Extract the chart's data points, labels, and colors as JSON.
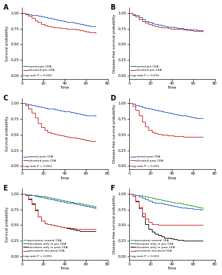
{
  "panels": [
    {
      "label": "A",
      "ylabel": "Survival probability",
      "xlabel": "Time",
      "logrank": "Log rank P = 0.042",
      "xlim": [
        0,
        80
      ],
      "ylim": [
        -0.05,
        1.08
      ],
      "yticks": [
        0.0,
        0.25,
        0.5,
        0.75,
        1.0
      ],
      "curves": [
        {
          "color": "#3366cc",
          "legend": "normal pre-CEA",
          "x": [
            0,
            3,
            6,
            9,
            12,
            15,
            18,
            21,
            24,
            27,
            30,
            33,
            36,
            39,
            42,
            45,
            48,
            51,
            54,
            57,
            60,
            63,
            66,
            69
          ],
          "y": [
            1.0,
            0.99,
            0.98,
            0.97,
            0.96,
            0.95,
            0.94,
            0.93,
            0.92,
            0.91,
            0.9,
            0.89,
            0.88,
            0.87,
            0.86,
            0.85,
            0.84,
            0.83,
            0.82,
            0.81,
            0.8,
            0.79,
            0.79,
            0.79
          ]
        },
        {
          "color": "#cc3333",
          "legend": "elevated pre-CEA",
          "x": [
            0,
            3,
            6,
            9,
            12,
            15,
            18,
            21,
            24,
            27,
            30,
            33,
            36,
            39,
            42,
            45,
            48,
            51,
            54,
            57,
            60,
            63,
            66,
            69
          ],
          "y": [
            1.0,
            0.98,
            0.95,
            0.92,
            0.88,
            0.85,
            0.82,
            0.8,
            0.79,
            0.78,
            0.77,
            0.77,
            0.76,
            0.76,
            0.75,
            0.75,
            0.74,
            0.73,
            0.72,
            0.71,
            0.7,
            0.69,
            0.69,
            0.68
          ]
        }
      ]
    },
    {
      "label": "B",
      "ylabel": "Disease-free survival probability",
      "xlabel": "Time",
      "logrank": "Log rank P = 0.610",
      "xlim": [
        0,
        80
      ],
      "ylim": [
        -0.05,
        1.08
      ],
      "yticks": [
        0.0,
        0.25,
        0.5,
        0.75,
        1.0
      ],
      "curves": [
        {
          "color": "#3366cc",
          "legend": "normal pre-CEA",
          "x": [
            0,
            3,
            6,
            9,
            12,
            15,
            18,
            21,
            24,
            27,
            30,
            33,
            36,
            39,
            42,
            45,
            48,
            51,
            54,
            57,
            60,
            63,
            66,
            69
          ],
          "y": [
            1.0,
            0.98,
            0.96,
            0.93,
            0.9,
            0.87,
            0.85,
            0.83,
            0.82,
            0.81,
            0.8,
            0.79,
            0.78,
            0.78,
            0.77,
            0.76,
            0.76,
            0.75,
            0.74,
            0.73,
            0.73,
            0.72,
            0.72,
            0.72
          ]
        },
        {
          "color": "#cc3333",
          "legend": "elevated pre-CEA",
          "x": [
            0,
            3,
            6,
            9,
            12,
            15,
            18,
            21,
            24,
            27,
            30,
            33,
            36,
            39,
            42,
            45,
            48,
            51,
            54,
            57,
            60,
            63,
            66,
            69
          ],
          "y": [
            1.0,
            0.97,
            0.94,
            0.9,
            0.87,
            0.84,
            0.82,
            0.8,
            0.79,
            0.78,
            0.77,
            0.77,
            0.76,
            0.75,
            0.75,
            0.74,
            0.74,
            0.73,
            0.72,
            0.72,
            0.71,
            0.71,
            0.71,
            0.7
          ]
        }
      ]
    },
    {
      "label": "C",
      "ylabel": "Survival probability",
      "xlabel": "Time",
      "logrank": "Log rank P < 0.001",
      "xlim": [
        0,
        80
      ],
      "ylim": [
        -0.05,
        1.08
      ],
      "yticks": [
        0.0,
        0.25,
        0.5,
        0.75,
        1.0
      ],
      "curves": [
        {
          "color": "#3366cc",
          "legend": "normal post-CEA",
          "x": [
            0,
            3,
            6,
            9,
            12,
            15,
            18,
            21,
            24,
            27,
            30,
            33,
            36,
            39,
            42,
            45,
            48,
            51,
            54,
            57,
            60,
            63,
            66,
            69
          ],
          "y": [
            1.0,
            0.99,
            0.98,
            0.97,
            0.96,
            0.95,
            0.94,
            0.93,
            0.92,
            0.91,
            0.9,
            0.89,
            0.88,
            0.87,
            0.87,
            0.86,
            0.85,
            0.84,
            0.83,
            0.82,
            0.81,
            0.8,
            0.8,
            0.79
          ]
        },
        {
          "color": "#cc3333",
          "legend": "elevated post-CEA",
          "x": [
            0,
            3,
            6,
            9,
            12,
            15,
            18,
            21,
            24,
            27,
            30,
            33,
            36,
            39,
            42,
            45,
            48,
            51,
            54,
            57,
            60,
            63,
            66,
            69
          ],
          "y": [
            1.0,
            0.97,
            0.92,
            0.85,
            0.77,
            0.69,
            0.62,
            0.57,
            0.54,
            0.52,
            0.51,
            0.5,
            0.49,
            0.48,
            0.47,
            0.46,
            0.45,
            0.44,
            0.43,
            0.42,
            0.41,
            0.4,
            0.4,
            0.4
          ]
        }
      ]
    },
    {
      "label": "D",
      "ylabel": "Disease-free survival probability",
      "xlabel": "Time",
      "logrank": "Log rank P < 0.001",
      "xlim": [
        0,
        80
      ],
      "ylim": [
        -0.05,
        1.08
      ],
      "yticks": [
        0.0,
        0.25,
        0.5,
        0.75,
        1.0
      ],
      "curves": [
        {
          "color": "#3366cc",
          "legend": "normal post-CEA",
          "x": [
            0,
            3,
            6,
            9,
            12,
            15,
            18,
            21,
            24,
            27,
            30,
            33,
            36,
            39,
            42,
            45,
            48,
            51,
            54,
            57,
            60,
            63,
            66,
            69
          ],
          "y": [
            1.0,
            0.99,
            0.97,
            0.96,
            0.94,
            0.93,
            0.91,
            0.9,
            0.89,
            0.88,
            0.87,
            0.86,
            0.85,
            0.84,
            0.83,
            0.82,
            0.81,
            0.8,
            0.79,
            0.78,
            0.77,
            0.76,
            0.76,
            0.76
          ]
        },
        {
          "color": "#cc3333",
          "legend": "elevated post-CEA",
          "x": [
            0,
            3,
            6,
            9,
            12,
            15,
            18,
            21,
            24,
            27,
            30,
            33,
            36,
            39,
            42,
            45,
            48,
            51,
            54,
            57,
            60,
            63,
            66,
            69
          ],
          "y": [
            1.0,
            0.96,
            0.89,
            0.8,
            0.71,
            0.63,
            0.58,
            0.54,
            0.52,
            0.51,
            0.5,
            0.5,
            0.49,
            0.49,
            0.48,
            0.48,
            0.48,
            0.47,
            0.47,
            0.47,
            0.47,
            0.47,
            0.47,
            0.47
          ]
        }
      ]
    },
    {
      "label": "E",
      "ylabel": "Survival probability",
      "xlabel": "Time",
      "logrank": "Log rank P < 0.001",
      "xlim": [
        0,
        80
      ],
      "ylim": [
        -0.05,
        1.08
      ],
      "yticks": [
        0.0,
        0.25,
        0.5,
        0.75,
        1.0
      ],
      "curves": [
        {
          "color": "#33aa33",
          "legend": "persistent normal CEA",
          "x": [
            0,
            3,
            6,
            9,
            12,
            15,
            18,
            21,
            24,
            27,
            30,
            33,
            36,
            39,
            42,
            45,
            48,
            51,
            54,
            57,
            60,
            63,
            66,
            69
          ],
          "y": [
            1.0,
            0.99,
            0.99,
            0.98,
            0.97,
            0.96,
            0.96,
            0.95,
            0.94,
            0.93,
            0.92,
            0.91,
            0.9,
            0.89,
            0.88,
            0.87,
            0.86,
            0.85,
            0.84,
            0.83,
            0.82,
            0.81,
            0.8,
            0.79
          ]
        },
        {
          "color": "#3366cc",
          "legend": "elevation only in pre-CEA",
          "x": [
            0,
            3,
            6,
            9,
            12,
            15,
            18,
            21,
            24,
            27,
            30,
            33,
            36,
            39,
            42,
            45,
            48,
            51,
            54,
            57,
            60,
            63,
            66,
            69
          ],
          "y": [
            1.0,
            0.99,
            0.98,
            0.97,
            0.96,
            0.95,
            0.94,
            0.93,
            0.92,
            0.91,
            0.9,
            0.89,
            0.88,
            0.87,
            0.86,
            0.85,
            0.84,
            0.83,
            0.82,
            0.81,
            0.8,
            0.79,
            0.78,
            0.77
          ]
        },
        {
          "color": "#111111",
          "legend": "elevation only in post-CEA",
          "x": [
            0,
            3,
            6,
            9,
            12,
            15,
            18,
            21,
            24,
            27,
            30,
            33,
            36,
            39,
            42,
            45,
            48,
            51,
            54,
            57,
            60,
            63,
            66,
            69
          ],
          "y": [
            1.0,
            0.97,
            0.92,
            0.84,
            0.74,
            0.64,
            0.57,
            0.53,
            0.51,
            0.5,
            0.49,
            0.48,
            0.47,
            0.46,
            0.45,
            0.44,
            0.43,
            0.42,
            0.41,
            0.41,
            0.4,
            0.4,
            0.4,
            0.4
          ]
        },
        {
          "color": "#cc3333",
          "legend": "persistent elevated CEA",
          "x": [
            0,
            3,
            6,
            9,
            12,
            15,
            18,
            21,
            24,
            27,
            30,
            33,
            36,
            39,
            42,
            45,
            48,
            51,
            54,
            57,
            60,
            63,
            66,
            69
          ],
          "y": [
            1.0,
            0.97,
            0.91,
            0.83,
            0.73,
            0.64,
            0.57,
            0.53,
            0.51,
            0.5,
            0.49,
            0.48,
            0.47,
            0.46,
            0.46,
            0.45,
            0.45,
            0.44,
            0.44,
            0.44,
            0.44,
            0.44,
            0.44,
            0.44
          ]
        }
      ]
    },
    {
      "label": "F",
      "ylabel": "Disease-free survival probability",
      "xlabel": "Time",
      "logrank": "Log rank P < 0.001",
      "xlim": [
        0,
        80
      ],
      "ylim": [
        -0.05,
        1.08
      ],
      "yticks": [
        0.0,
        0.25,
        0.5,
        0.75,
        1.0
      ],
      "curves": [
        {
          "color": "#33aa33",
          "legend": "persistent normal CEA",
          "x": [
            0,
            3,
            6,
            9,
            12,
            15,
            18,
            21,
            24,
            27,
            30,
            33,
            36,
            39,
            42,
            45,
            48,
            51,
            54,
            57,
            60,
            63,
            66,
            69
          ],
          "y": [
            1.0,
            0.99,
            0.98,
            0.97,
            0.96,
            0.95,
            0.94,
            0.93,
            0.92,
            0.91,
            0.9,
            0.89,
            0.88,
            0.87,
            0.86,
            0.85,
            0.84,
            0.83,
            0.82,
            0.81,
            0.8,
            0.79,
            0.78,
            0.77
          ]
        },
        {
          "color": "#3366cc",
          "legend": "elevation only in pre-CEA",
          "x": [
            0,
            3,
            6,
            9,
            12,
            15,
            18,
            21,
            24,
            27,
            30,
            33,
            36,
            39,
            42,
            45,
            48,
            51,
            54,
            57,
            60,
            63,
            66,
            69
          ],
          "y": [
            1.0,
            0.99,
            0.97,
            0.95,
            0.93,
            0.91,
            0.89,
            0.87,
            0.86,
            0.85,
            0.84,
            0.83,
            0.82,
            0.81,
            0.8,
            0.79,
            0.78,
            0.78,
            0.77,
            0.77,
            0.76,
            0.76,
            0.75,
            0.75
          ]
        },
        {
          "color": "#111111",
          "legend": "elevation only in post-CEA",
          "x": [
            0,
            3,
            6,
            9,
            12,
            15,
            18,
            21,
            24,
            27,
            30,
            33,
            36,
            39,
            42,
            45,
            48,
            51,
            54,
            57,
            60,
            63,
            66,
            69
          ],
          "y": [
            1.0,
            0.96,
            0.88,
            0.77,
            0.64,
            0.52,
            0.44,
            0.39,
            0.36,
            0.34,
            0.32,
            0.3,
            0.29,
            0.28,
            0.27,
            0.26,
            0.26,
            0.25,
            0.25,
            0.25,
            0.25,
            0.25,
            0.25,
            0.25
          ]
        },
        {
          "color": "#cc3333",
          "legend": "persistent elevated CEA",
          "x": [
            0,
            3,
            6,
            9,
            12,
            15,
            18,
            21,
            24,
            27,
            30,
            33,
            36,
            39,
            42,
            45,
            48,
            51,
            54,
            57,
            60,
            63,
            66,
            69
          ],
          "y": [
            1.0,
            0.96,
            0.89,
            0.79,
            0.69,
            0.6,
            0.55,
            0.52,
            0.51,
            0.5,
            0.5,
            0.5,
            0.5,
            0.5,
            0.5,
            0.5,
            0.5,
            0.5,
            0.5,
            0.5,
            0.5,
            0.5,
            0.5,
            0.5
          ]
        }
      ]
    }
  ],
  "bg_color": "#f5f5f5"
}
